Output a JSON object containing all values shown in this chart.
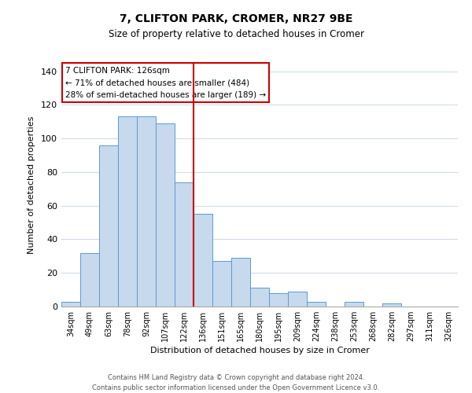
{
  "title": "7, CLIFTON PARK, CROMER, NR27 9BE",
  "subtitle": "Size of property relative to detached houses in Cromer",
  "xlabel": "Distribution of detached houses by size in Cromer",
  "ylabel": "Number of detached properties",
  "bar_labels": [
    "34sqm",
    "49sqm",
    "63sqm",
    "78sqm",
    "92sqm",
    "107sqm",
    "122sqm",
    "136sqm",
    "151sqm",
    "165sqm",
    "180sqm",
    "195sqm",
    "209sqm",
    "224sqm",
    "238sqm",
    "253sqm",
    "268sqm",
    "282sqm",
    "297sqm",
    "311sqm",
    "326sqm"
  ],
  "bar_values": [
    3,
    32,
    96,
    113,
    113,
    109,
    74,
    55,
    27,
    29,
    11,
    8,
    9,
    3,
    0,
    3,
    0,
    2,
    0,
    0,
    0
  ],
  "bar_color": "#c7d9ec",
  "bar_edge_color": "#5b9bd5",
  "vline_x": 6.5,
  "vline_color": "#cc0000",
  "annotation_lines": [
    "7 CLIFTON PARK: 126sqm",
    "← 71% of detached houses are smaller (484)",
    "28% of semi-detached houses are larger (189) →"
  ],
  "annotation_box_color": "#cc0000",
  "ylim": [
    0,
    145
  ],
  "yticks": [
    0,
    20,
    40,
    60,
    80,
    100,
    120,
    140
  ],
  "footer_line1": "Contains HM Land Registry data © Crown copyright and database right 2024.",
  "footer_line2": "Contains public sector information licensed under the Open Government Licence v3.0.",
  "bg_color": "#ffffff",
  "grid_color": "#d0dce8"
}
